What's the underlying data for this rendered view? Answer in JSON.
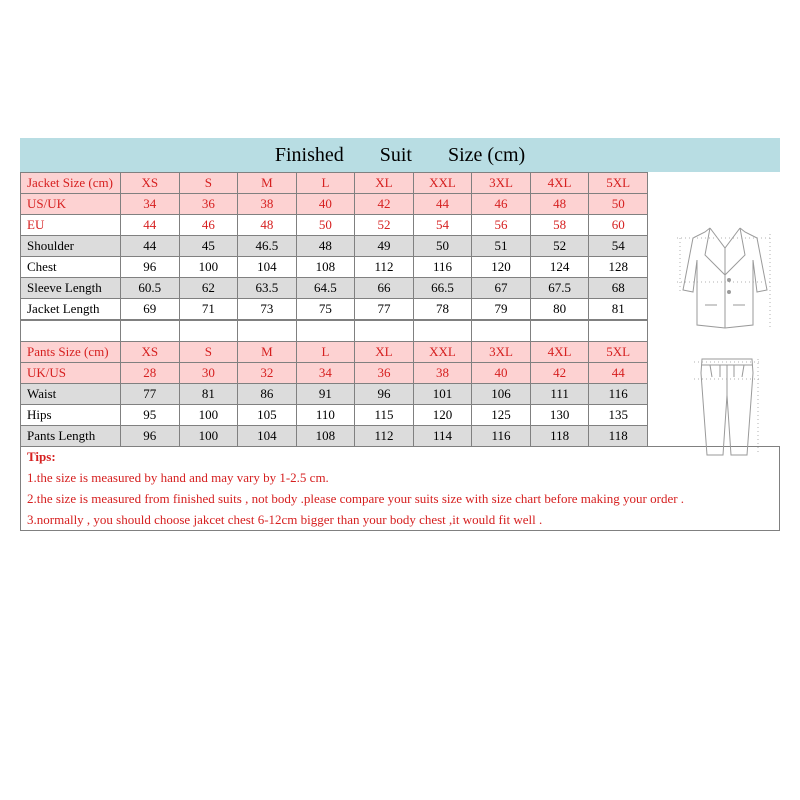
{
  "header": {
    "w1": "Finished",
    "w2": "Suit",
    "w3": "Size (cm)",
    "bg": "#b8dde3"
  },
  "colors": {
    "red": "#d62020",
    "black": "#000000",
    "gray_bg": "#dcdcdc",
    "white_bg": "#ffffff",
    "pink_bg": "#fdd2d2",
    "border": "#808080"
  },
  "sizes": [
    "XS",
    "S",
    "M",
    "L",
    "XL",
    "XXL",
    "3XL",
    "4XL",
    "5XL"
  ],
  "jacket": {
    "title": "Jacket Size (cm)",
    "rows": [
      {
        "label": "US/UK",
        "vals": [
          "34",
          "36",
          "38",
          "40",
          "42",
          "44",
          "46",
          "48",
          "50"
        ],
        "red": true,
        "bg": "pink_bg"
      },
      {
        "label": "EU",
        "vals": [
          "44",
          "46",
          "48",
          "50",
          "52",
          "54",
          "56",
          "58",
          "60"
        ],
        "red": true,
        "bg": "white_bg"
      },
      {
        "label": "Shoulder",
        "vals": [
          "44",
          "45",
          "46.5",
          "48",
          "49",
          "50",
          "51",
          "52",
          "54"
        ],
        "red": false,
        "bg": "gray_bg"
      },
      {
        "label": "Chest",
        "vals": [
          "96",
          "100",
          "104",
          "108",
          "112",
          "116",
          "120",
          "124",
          "128"
        ],
        "red": false,
        "bg": "white_bg"
      },
      {
        "label": "Sleeve Length",
        "vals": [
          "60.5",
          "62",
          "63.5",
          "64.5",
          "66",
          "66.5",
          "67",
          "67.5",
          "68"
        ],
        "red": false,
        "bg": "gray_bg"
      },
      {
        "label": "Jacket Length",
        "vals": [
          "69",
          "71",
          "73",
          "75",
          "77",
          "78",
          "79",
          "80",
          "81"
        ],
        "red": false,
        "bg": "white_bg"
      }
    ]
  },
  "pants": {
    "title": "Pants Size (cm)",
    "rows": [
      {
        "label": "UK/US",
        "vals": [
          "28",
          "30",
          "32",
          "34",
          "36",
          "38",
          "40",
          "42",
          "44"
        ],
        "red": true,
        "bg": "pink_bg"
      },
      {
        "label": "Waist",
        "vals": [
          "77",
          "81",
          "86",
          "91",
          "96",
          "101",
          "106",
          "111",
          "116"
        ],
        "red": false,
        "bg": "gray_bg"
      },
      {
        "label": "Hips",
        "vals": [
          "95",
          "100",
          "105",
          "110",
          "115",
          "120",
          "125",
          "130",
          "135"
        ],
        "red": false,
        "bg": "white_bg"
      },
      {
        "label": "Pants Length",
        "vals": [
          "96",
          "100",
          "104",
          "108",
          "112",
          "114",
          "116",
          "118",
          "118"
        ],
        "red": false,
        "bg": "gray_bg"
      }
    ]
  },
  "tips": {
    "title": "Tips:",
    "lines": [
      "1.the size is measured by hand and may vary by 1-2.5 cm.",
      "2.the size is measured from finished suits , not body .please compare your suits size with size chart before making your order .",
      "3.normally , you should choose jakcet chest 6-12cm bigger than your body chest ,it would fit well ."
    ]
  }
}
